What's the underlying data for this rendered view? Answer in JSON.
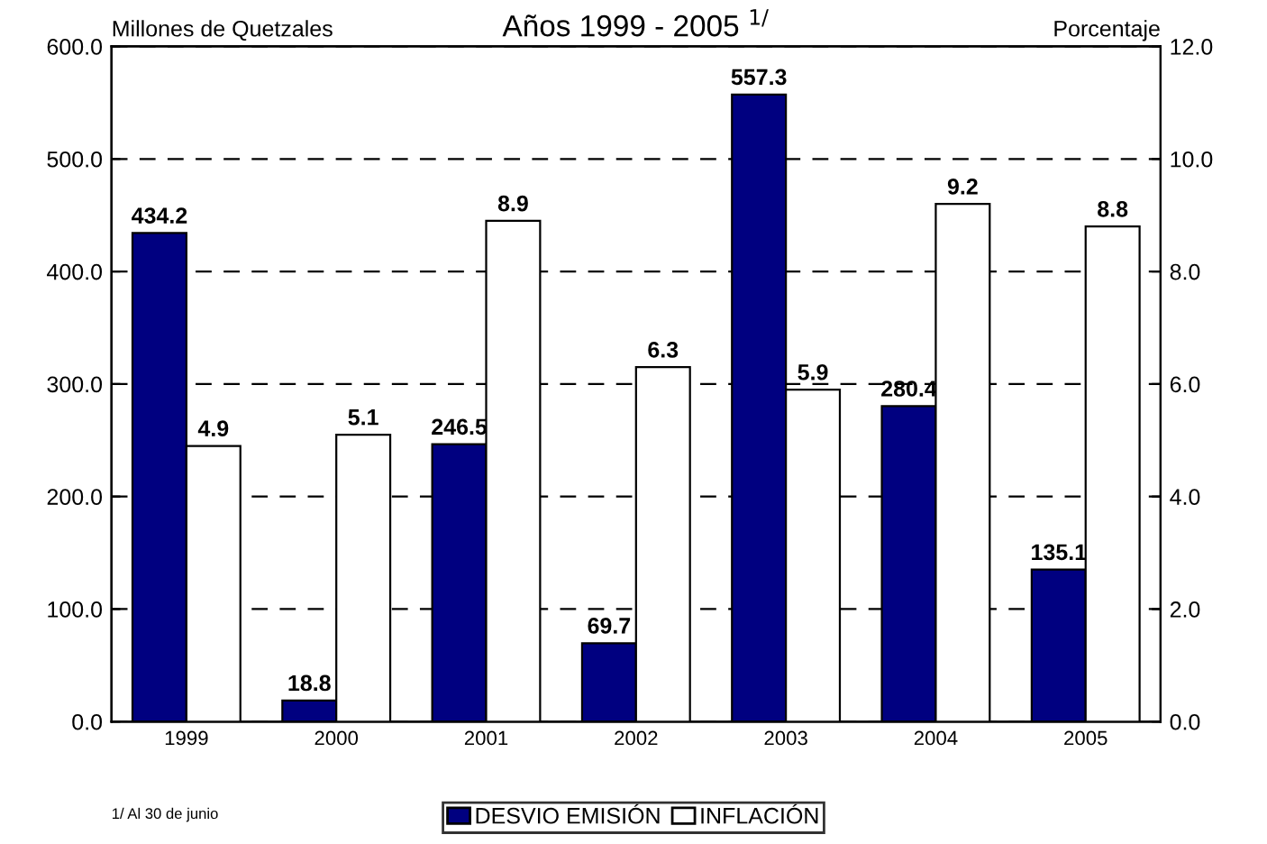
{
  "chart_data": {
    "type": "bar",
    "title": "Años 1999 - 2005 $^{1/}$",
    "ylabel": "Millones de Quetzales",
    "y2label": "Porcentaje",
    "categories": [
      "1999",
      "2000",
      "2001",
      "2002",
      "2003",
      "2004",
      "2005"
    ],
    "series": [
      {
        "name": "DESVIO EMISIÓN",
        "color": "#000080",
        "values": [
          434.2,
          18.8,
          246.5,
          69.7,
          557.3,
          280.4,
          135.1
        ]
      },
      {
        "name": "INFLACIÓN",
        "color": "#ffffff",
        "axis": "y2",
        "values": [
          4.9,
          5.1,
          8.9,
          6.3,
          5.9,
          9.2,
          8.8
        ]
      }
    ],
    "ylim": [
      0,
      600
    ],
    "yticks": [
      {
        "value": 0,
        "label": "0.0"
      },
      {
        "value": 100,
        "label": "100.0"
      },
      {
        "value": 200,
        "label": "200.0"
      },
      {
        "value": 300,
        "label": "300.0"
      },
      {
        "value": 400,
        "label": "400.0"
      },
      {
        "value": 500,
        "label": "500.0"
      },
      {
        "value": 600,
        "label": "600.0"
      }
    ],
    "y2lim": [
      0,
      12
    ],
    "y2ticks": [
      {
        "value": 0,
        "label": "0.0"
      },
      {
        "value": 2,
        "label": "2.0"
      },
      {
        "value": 4,
        "label": "4.0"
      },
      {
        "value": 6,
        "label": "6.0"
      },
      {
        "value": 8,
        "label": "8.0"
      },
      {
        "value": 10,
        "label": "10.0"
      },
      {
        "value": 12,
        "label": "12.0"
      }
    ],
    "grid": "y",
    "legend": "bottom",
    "data_labels": true,
    "line_style": "dashed",
    "annotations": [
      "1/ Al 30 de junio"
    ]
  }
}
